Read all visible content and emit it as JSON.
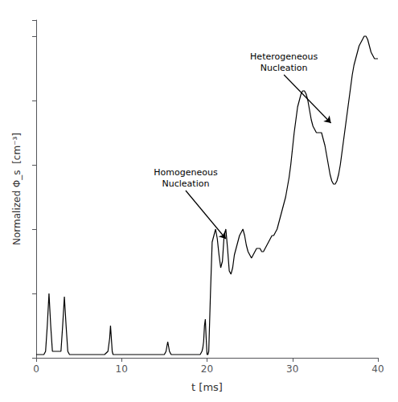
{
  "chart_data": {
    "type": "line",
    "xlabel": "t [ms]",
    "ylabel": "Normalized Φ_s  [cm⁻³]",
    "xlim": [
      0,
      40
    ],
    "ylim": [
      0,
      1.05
    ],
    "xticks": [
      0,
      10,
      20,
      30,
      40
    ],
    "yticks": [
      0,
      0.2,
      0.4,
      0.6,
      0.8,
      1.0
    ],
    "tick_labels": "x",
    "grid": false,
    "color": "#000000",
    "annotations": [
      {
        "text": "Heterogeneous\nNucleation",
        "xy": [
          34.5,
          0.73
        ],
        "xytext": [
          29.0,
          0.88
        ]
      },
      {
        "text": "Homogeneous\nNucleation",
        "xy": [
          22.2,
          0.37
        ],
        "xytext": [
          17.5,
          0.52
        ]
      }
    ],
    "x": [
      0.0,
      0.5,
      0.9,
      1.1,
      1.3,
      1.5,
      1.7,
      1.9,
      2.1,
      2.3,
      2.5,
      2.7,
      2.9,
      3.1,
      3.3,
      3.5,
      3.7,
      3.9,
      4.0,
      4.1,
      4.2,
      4.35,
      4.5,
      4.65,
      4.8,
      5.0,
      5.2,
      5.4,
      5.6,
      5.8,
      6.0,
      6.5,
      7.0,
      7.5,
      8.0,
      8.4,
      8.6,
      8.7,
      8.8,
      8.9,
      9.0,
      9.1,
      9.2,
      9.4,
      9.6,
      9.8,
      10.0,
      10.5,
      11.0,
      11.5,
      12.0,
      12.5,
      13.0,
      13.5,
      14.0,
      14.5,
      15.0,
      15.2,
      15.4,
      15.6,
      15.8,
      16.0,
      16.5,
      17.0,
      17.5,
      18.0,
      18.5,
      19.0,
      19.2,
      19.4,
      19.5,
      19.6,
      19.7,
      19.8,
      19.9,
      20.0,
      20.1,
      20.2,
      20.4,
      20.6,
      20.8,
      21.0,
      21.2,
      21.4,
      21.6,
      21.8,
      22.0,
      22.2,
      22.4,
      22.6,
      22.8,
      23.0,
      23.2,
      23.4,
      23.6,
      23.8,
      24.0,
      24.2,
      24.4,
      24.6,
      24.8,
      25.0,
      25.2,
      25.4,
      25.6,
      25.8,
      26.0,
      26.2,
      26.4,
      26.6,
      26.8,
      27.0,
      27.2,
      27.4,
      27.6,
      27.8,
      28.0,
      28.2,
      28.4,
      28.6,
      28.8,
      29.0,
      29.2,
      29.4,
      29.6,
      29.8,
      30.0,
      30.2,
      30.4,
      30.6,
      30.8,
      31.0,
      31.2,
      31.4,
      31.6,
      31.8,
      32.0,
      32.2,
      32.4,
      32.6,
      32.8,
      33.0,
      33.2,
      33.4,
      33.6,
      33.8,
      34.0,
      34.2,
      34.4,
      34.6,
      34.8,
      35.0,
      35.2,
      35.4,
      35.6,
      35.8,
      36.0,
      36.2,
      36.4,
      36.6,
      36.8,
      37.0,
      37.2,
      37.4,
      37.6,
      37.8,
      38.0,
      38.2,
      38.4,
      38.6,
      38.8,
      39.0,
      39.2,
      39.4,
      39.6,
      39.8,
      40.0
    ],
    "values": [
      0.01,
      0.01,
      0.01,
      0.02,
      0.1,
      0.2,
      0.1,
      0.02,
      0.02,
      0.02,
      0.02,
      0.02,
      0.02,
      0.1,
      0.19,
      0.1,
      0.02,
      0.01,
      0.01,
      0.01,
      0.01,
      0.01,
      0.01,
      0.01,
      0.01,
      0.01,
      0.01,
      0.01,
      0.01,
      0.01,
      0.01,
      0.01,
      0.01,
      0.01,
      0.01,
      0.02,
      0.06,
      0.1,
      0.06,
      0.02,
      0.01,
      0.01,
      0.01,
      0.01,
      0.01,
      0.01,
      0.01,
      0.01,
      0.01,
      0.01,
      0.01,
      0.01,
      0.01,
      0.01,
      0.01,
      0.01,
      0.01,
      0.02,
      0.05,
      0.02,
      0.01,
      0.01,
      0.01,
      0.01,
      0.01,
      0.01,
      0.01,
      0.01,
      0.01,
      0.02,
      0.03,
      0.05,
      0.1,
      0.12,
      0.06,
      0.01,
      0.01,
      0.02,
      0.2,
      0.36,
      0.38,
      0.4,
      0.37,
      0.32,
      0.28,
      0.3,
      0.38,
      0.4,
      0.34,
      0.27,
      0.26,
      0.28,
      0.32,
      0.34,
      0.36,
      0.38,
      0.39,
      0.4,
      0.38,
      0.35,
      0.33,
      0.32,
      0.31,
      0.32,
      0.33,
      0.34,
      0.34,
      0.34,
      0.33,
      0.33,
      0.34,
      0.35,
      0.36,
      0.37,
      0.38,
      0.38,
      0.39,
      0.4,
      0.42,
      0.44,
      0.46,
      0.48,
      0.5,
      0.53,
      0.56,
      0.6,
      0.65,
      0.7,
      0.74,
      0.78,
      0.8,
      0.82,
      0.83,
      0.83,
      0.82,
      0.8,
      0.77,
      0.74,
      0.72,
      0.71,
      0.7,
      0.7,
      0.7,
      0.7,
      0.68,
      0.66,
      0.63,
      0.6,
      0.57,
      0.55,
      0.54,
      0.54,
      0.55,
      0.57,
      0.6,
      0.64,
      0.68,
      0.72,
      0.76,
      0.8,
      0.84,
      0.88,
      0.91,
      0.93,
      0.95,
      0.97,
      0.98,
      0.99,
      1.0,
      1.0,
      0.99,
      0.97,
      0.95,
      0.94,
      0.93,
      0.93,
      0.93
    ]
  }
}
